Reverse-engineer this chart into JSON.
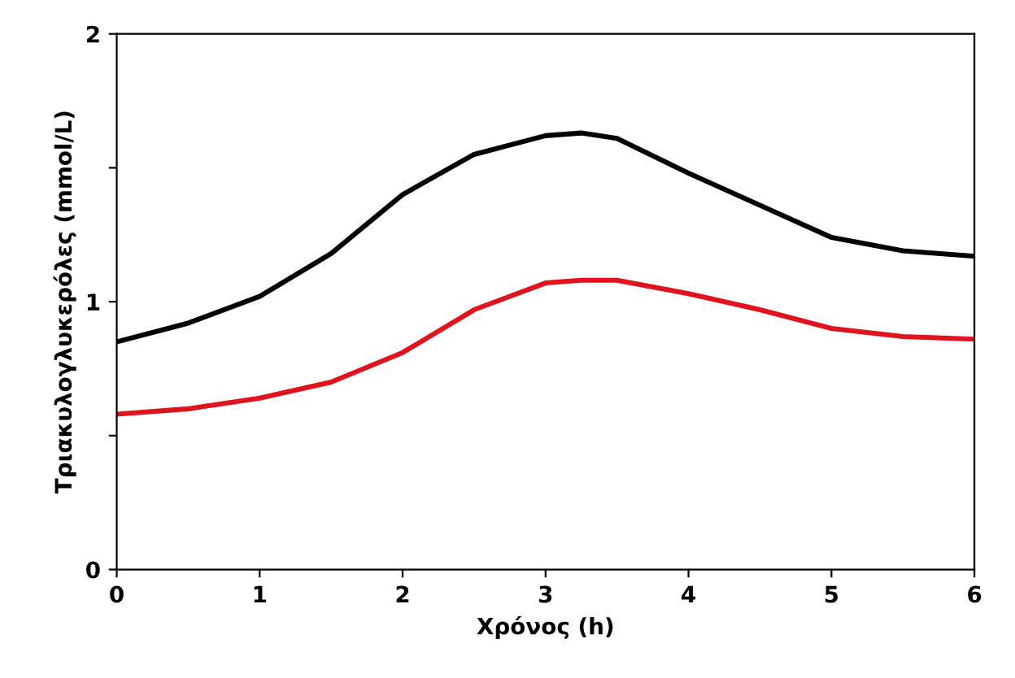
{
  "chart_data": {
    "type": "line",
    "xlabel": "Χρόνος (h)",
    "ylabel": "Τριακυλογλυκερόλες (mmol/L)",
    "x": [
      0,
      0.5,
      1,
      1.5,
      2,
      2.5,
      3,
      3.25,
      3.5,
      4,
      4.5,
      5,
      5.5,
      6
    ],
    "series": [
      {
        "color": "#000000",
        "values": [
          0.85,
          0.92,
          1.02,
          1.18,
          1.4,
          1.55,
          1.62,
          1.63,
          1.61,
          1.48,
          1.36,
          1.24,
          1.19,
          1.17
        ]
      },
      {
        "color": "#e0141e",
        "values": [
          0.58,
          0.6,
          0.64,
          0.7,
          0.81,
          0.97,
          1.07,
          1.08,
          1.08,
          1.03,
          0.97,
          0.9,
          0.87,
          0.86
        ]
      }
    ],
    "xlim": [
      0,
      6
    ],
    "ylim": [
      0,
      2
    ],
    "xticks": [
      0,
      1,
      2,
      3,
      4,
      5,
      6
    ],
    "yticks": [
      0,
      {
        "value": 0.5,
        "label": null
      },
      1,
      {
        "value": 1.5,
        "label": null
      },
      2
    ],
    "grid": false,
    "legend": false,
    "marker": "none",
    "line_style": "solid"
  }
}
